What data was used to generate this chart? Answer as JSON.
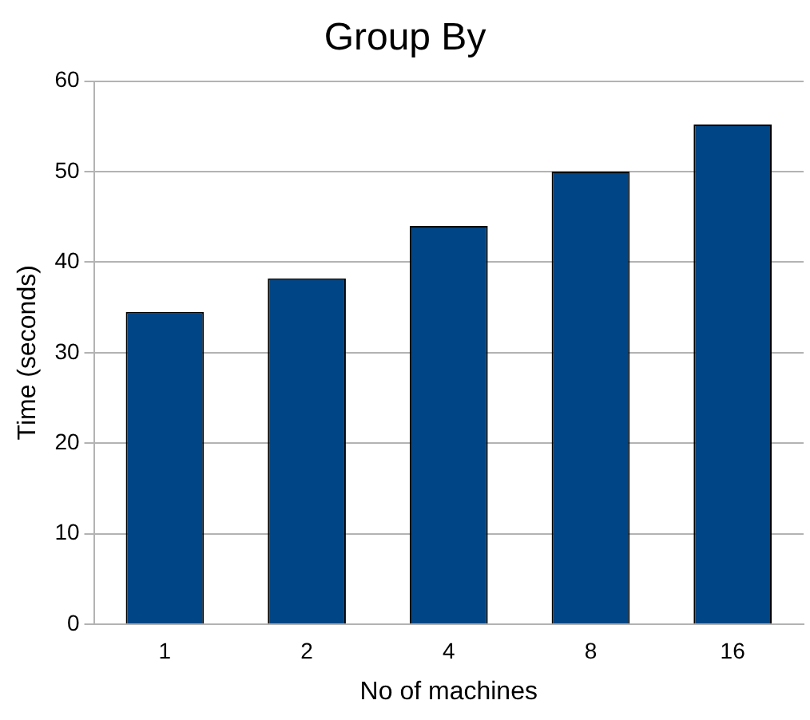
{
  "chart_data": {
    "type": "bar",
    "title": "Group By",
    "xlabel": "No of machines",
    "ylabel": "Time (seconds)",
    "categories": [
      "1",
      "2",
      "4",
      "8",
      "16"
    ],
    "values": [
      34.5,
      38.2,
      44,
      50,
      55.2
    ],
    "color": "#004586",
    "ylim": [
      0,
      60
    ],
    "yticks": [
      0,
      10,
      20,
      30,
      40,
      50,
      60
    ],
    "grid": "y",
    "legend": false
  }
}
